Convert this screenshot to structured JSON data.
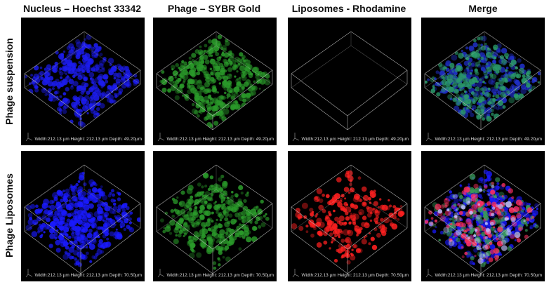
{
  "column_headers": [
    "Nucleus – Hoechst 33342",
    "Phage – SYBR Gold",
    "Liposomes - Rhodamine",
    "Merge"
  ],
  "row_labels": [
    "Phage suspension",
    "Phage Liposomes"
  ],
  "panels": [
    [
      "Width:212.13 µm Height: 212.13 µm Depth: 49.20µm",
      "Width:212.13 µm Height: 212.13 µm Depth: 49.20µm",
      "Width:212.13 µm Height: 212.13 µm Depth: 49.20µm",
      "Width:212.13 µm Height: 212.13 µm Depth: 49.20µm"
    ],
    [
      "Width:212.13 µm Height: 212.13 µm Depth: 70.50µm",
      "Width:212.13 µm Height: 212.13 µm Depth: 70.50µm",
      "Width:212.13 µm Height: 212.13 µm Depth: 70.50µm",
      "Width:212.13 µm Height: 212.13 µm Depth: 70.50µm"
    ]
  ]
}
